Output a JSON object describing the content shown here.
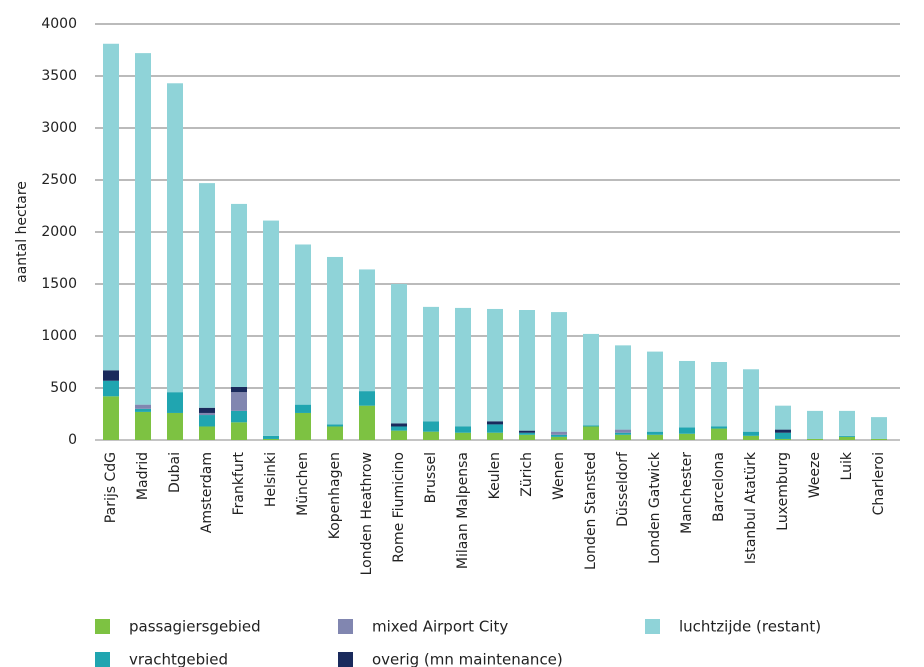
{
  "chart_data": {
    "type": "stacked_bar",
    "y_label": "aantal hectare",
    "categories": [
      "Parijs CdG",
      "Madrid",
      "Dubai",
      "Amsterdam",
      "Frankfurt",
      "Helsinki",
      "München",
      "Kopenhagen",
      "Londen Heathrow",
      "Rome Fiumicino",
      "Brussel",
      "Milaan Malpensa",
      "Keulen",
      "Zürich",
      "Wenen",
      "Londen Stansted",
      "Düsseldorf",
      "Londen Gatwick",
      "Manchester",
      "Barcelona",
      "Istanbul Atatürk",
      "Luxemburg",
      "Weeze",
      "Luik",
      "Charleroi"
    ],
    "series": [
      {
        "name": "passagiersgebied",
        "color": "#7dc242",
        "values": [
          420,
          270,
          260,
          130,
          170,
          10,
          260,
          130,
          330,
          90,
          80,
          70,
          70,
          50,
          30,
          130,
          50,
          50,
          60,
          110,
          40,
          10,
          10,
          30,
          10
        ]
      },
      {
        "name": "vrachtgebied",
        "color": "#20a5b0",
        "values": [
          150,
          30,
          200,
          110,
          110,
          30,
          80,
          20,
          140,
          40,
          100,
          60,
          80,
          20,
          20,
          10,
          20,
          30,
          60,
          20,
          40,
          60,
          0,
          10,
          0
        ]
      },
      {
        "name": "mixed Airport City",
        "color": "#8186b0",
        "values": [
          0,
          40,
          0,
          20,
          180,
          0,
          0,
          0,
          0,
          0,
          0,
          0,
          0,
          0,
          30,
          0,
          30,
          0,
          0,
          0,
          0,
          0,
          0,
          0,
          0
        ]
      },
      {
        "name": "overig (mn maintenance)",
        "color": "#1a2a5c",
        "values": [
          100,
          0,
          0,
          50,
          50,
          0,
          0,
          0,
          0,
          30,
          0,
          0,
          30,
          20,
          0,
          0,
          0,
          0,
          0,
          0,
          0,
          30,
          0,
          0,
          0
        ]
      },
      {
        "name": "luchtzijde (restant)",
        "color": "#8fd3d8",
        "values": [
          3140,
          3380,
          2970,
          2160,
          1760,
          2070,
          1540,
          1610,
          1170,
          1340,
          1100,
          1140,
          1080,
          1160,
          1150,
          880,
          810,
          770,
          640,
          620,
          600,
          230,
          270,
          240,
          210
        ]
      }
    ],
    "ylim": [
      0,
      4000
    ],
    "yticks": [
      0,
      500,
      1000,
      1500,
      2000,
      2500,
      3000,
      3500,
      4000
    ],
    "grid": true
  }
}
